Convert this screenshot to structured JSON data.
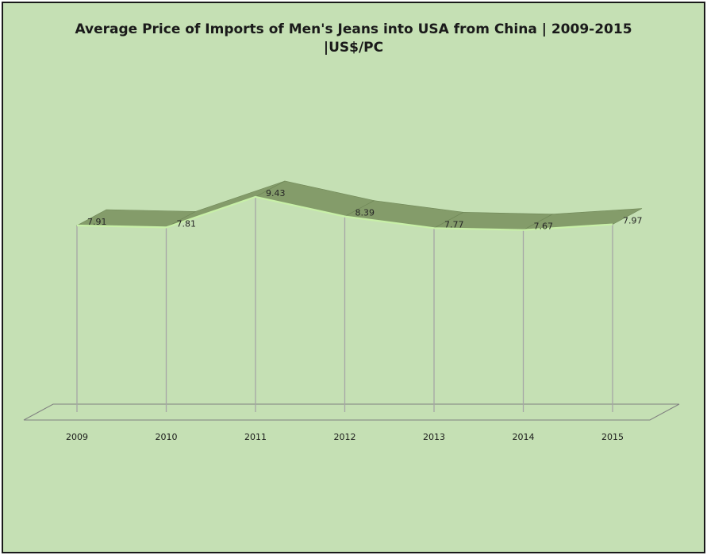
{
  "chart_data": {
    "type": "line",
    "title_line1": "Average Price of Imports of Men's Jeans into USA from China | 2009-2015",
    "title_line2": "|US$/PC",
    "categories": [
      "2009",
      "2010",
      "2011",
      "2012",
      "2013",
      "2014",
      "2015"
    ],
    "values": [
      7.91,
      7.81,
      9.43,
      8.39,
      7.77,
      7.67,
      7.97
    ],
    "data_labels": [
      "7.91",
      "7.81",
      "9.43",
      "8.39",
      "7.77",
      "7.67",
      "7.97"
    ],
    "style": "3d-ribbon",
    "grid": false,
    "colors": {
      "background": "#c5e0b4",
      "ribbon_top": "#849c6a",
      "ribbon_edge": "#c8f0a8",
      "drop_lines": "#a6a6a6",
      "floor": "#808080"
    }
  }
}
